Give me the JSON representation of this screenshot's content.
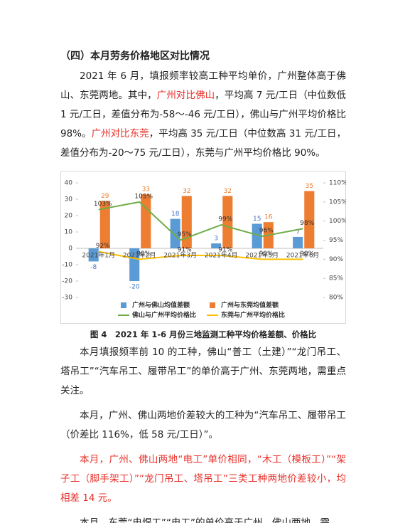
{
  "heading": "（四）本月劳务价格地区对比情况",
  "paragraphs": [
    {
      "runs": [
        {
          "text": "2021 年 6 月，填报频率较高工种平均单价，广州整体高于佛山、东莞两地。其中，"
        },
        {
          "text": "广州对比佛山",
          "color": "#e8302a"
        },
        {
          "text": "，平均高 7 元/工日（中位数低 1 元/工日，差值分布为-58～-46 元/工日），佛山与广州平均价格比 98%。"
        },
        {
          "text": "广州对比东莞",
          "color": "#e8302a"
        },
        {
          "text": "，平均高 35 元/工日（中位数高 31 元/工日，差值分布为-20～75 元/工日），东莞与广州平均价格比 90%。"
        }
      ]
    }
  ],
  "caption": "图 4　2021 年 1-6 月份三地监测工种平均价格差额、价格比",
  "paragraphs_after": [
    {
      "runs": [
        {
          "text": "本月填报频率前 10 的工种，佛山“普工（土建）”“龙门吊工、塔吊工”“汽车吊工、履带吊工”的单价高于广州、东莞两地，需重点关注。"
        }
      ]
    },
    {
      "runs": [
        {
          "text": "本月，广州、佛山两地价差较大的工种为“汽车吊工、履带吊工（价差比 116%，低 58 元/工日）”。"
        }
      ]
    },
    {
      "runs": [
        {
          "text": "本月，广州、佛山两地“电工”单价相同，“木工（模板工）”“架子工（脚手架工）”“龙门吊工、塔吊工”三类工种两地价差较小，均相差 14 元。",
          "color": "#e8302a"
        }
      ]
    },
    {
      "runs": [
        {
          "text": "本月，东莞“电焊工”“电工”的单价高于广州、佛山两地，需"
        }
      ]
    }
  ],
  "chart_data": {
    "type": "bar-line",
    "categories": [
      "2021年1月",
      "2021年2月",
      "2021年3月",
      "2021年4月",
      "2021年5月",
      "2021年6月"
    ],
    "series": [
      {
        "name": "广州与佛山均值差额",
        "type": "bar",
        "color": "#5b9bd5",
        "values": [
          -8,
          -20,
          18,
          3,
          15,
          7
        ]
      },
      {
        "name": "广州与东莞均值差额",
        "type": "bar",
        "color": "#ed7d31",
        "values": [
          29,
          33,
          32,
          32,
          16,
          35
        ]
      },
      {
        "name": "佛山与广州平均价格比",
        "type": "line",
        "axis": "y2",
        "color": "#70ad47",
        "values": [
          103,
          105,
          95,
          99,
          96,
          98
        ],
        "value_labels": [
          "103%",
          "105%",
          "95%",
          "99%",
          "96%",
          "98%"
        ]
      },
      {
        "name": "东莞与广州平均价格比",
        "type": "line",
        "axis": "y2",
        "color": "#ffc000",
        "values": [
          92,
          90,
          91,
          91,
          90,
          90
        ],
        "value_labels": [
          "92%",
          "90%",
          "91%",
          "91%",
          "90%",
          "90%"
        ]
      }
    ],
    "ylim": [
      -30,
      40
    ],
    "yticks": [
      -30,
      -20,
      -10,
      0,
      10,
      20,
      30,
      40
    ],
    "y2lim": [
      80,
      110
    ],
    "y2ticks": [
      {
        "value": 80,
        "label": "80%"
      },
      {
        "value": 85,
        "label": "85%"
      },
      {
        "value": 90,
        "label": "90%"
      },
      {
        "value": 95,
        "label": "95%"
      },
      {
        "value": 100,
        "label": "100%"
      },
      {
        "value": 105,
        "label": "105%"
      },
      {
        "value": 110,
        "label": "110%"
      }
    ],
    "legend": "bottom"
  }
}
